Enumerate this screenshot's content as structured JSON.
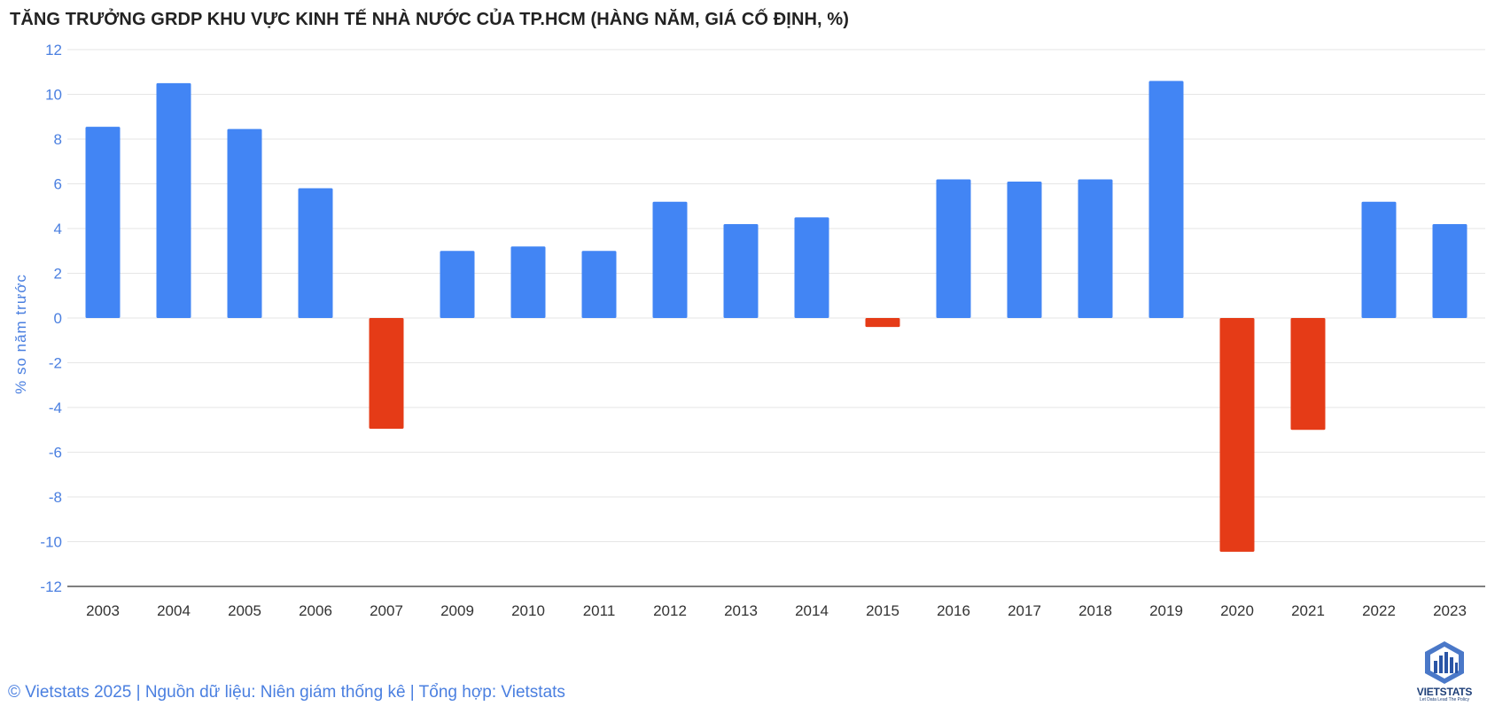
{
  "colors": {
    "positive": "#4285f4",
    "negative": "#e53b17",
    "axis_text": "#4a7fe0",
    "grid": "#e6e6e6"
  },
  "chart_data": {
    "type": "bar",
    "title": "TĂNG TRƯỞNG GRDP KHU VỰC KINH TẾ NHÀ NƯỚC CỦA TP.HCM (HÀNG NĂM, GIÁ CỐ ĐỊNH, %)",
    "xlabel": "",
    "ylabel": "% so năm trước",
    "ylim": [
      -12,
      12
    ],
    "yticks": [
      12,
      10,
      8,
      6,
      4,
      2,
      0,
      -2,
      -4,
      -6,
      -8,
      -10,
      -12
    ],
    "grid": true,
    "categories": [
      "2003",
      "2004",
      "2005",
      "2006",
      "2007",
      "2009",
      "2010",
      "2011",
      "2012",
      "2013",
      "2014",
      "2015",
      "2016",
      "2017",
      "2018",
      "2019",
      "2020",
      "2021",
      "2022",
      "2023"
    ],
    "values": [
      8.55,
      10.5,
      8.45,
      5.8,
      -4.95,
      3.0,
      3.2,
      3.0,
      5.2,
      4.2,
      4.5,
      -0.4,
      6.2,
      6.1,
      6.2,
      10.6,
      -10.45,
      -5.0,
      5.2,
      4.2
    ]
  },
  "footer": {
    "text": "© Vietstats 2025 | Nguồn dữ liệu: Niên giám thống kê | Tổng hợp: Vietstats"
  },
  "logo": {
    "text": "VIETSTATS",
    "tagline": "Let Data Lead The Policy"
  }
}
